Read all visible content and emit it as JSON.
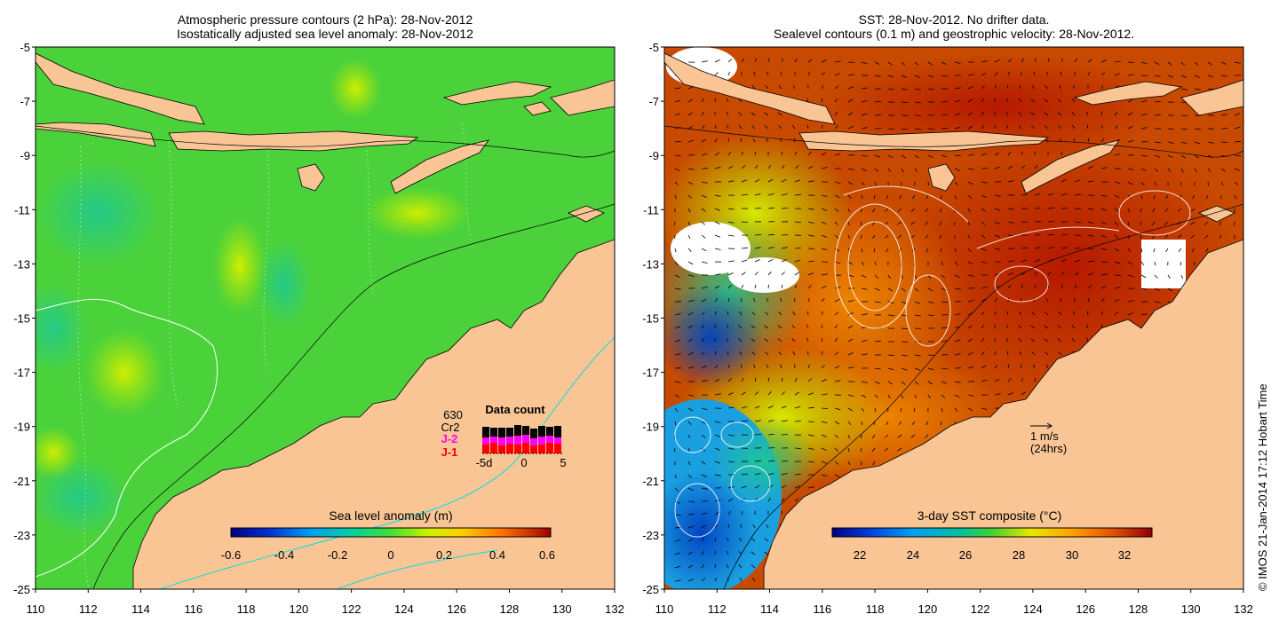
{
  "left_map": {
    "title_line1": "Atmospheric pressure contours (2 hPa): 28-Nov-2012",
    "title_line2": "Isostatically adjusted sea level anomaly: 28-Nov-2012",
    "colorbar_title": "Sea level anomaly (m)",
    "colorbar_ticks": [
      "-0.6",
      "-0.4",
      "-0.2",
      "0",
      "0.2",
      "0.4",
      "0.6"
    ],
    "y_ticks": [
      "-5",
      "-7",
      "-9",
      "-11",
      "-13",
      "-15",
      "-17",
      "-19",
      "-21",
      "-23",
      "-25"
    ],
    "x_ticks": [
      "110",
      "112",
      "114",
      "116",
      "118",
      "120",
      "122",
      "124",
      "126",
      "128",
      "130",
      "132"
    ],
    "data_count": {
      "title": "Data count",
      "total": "630",
      "sat1": "Cr2",
      "sat2": "J-2",
      "sat3": "J-1",
      "axis_left": "-5d",
      "axis_mid": "0",
      "axis_right": "5",
      "colors": {
        "cr2": "#000000",
        "j2": "#ff00ff",
        "j1": "#ff0000"
      }
    }
  },
  "right_map": {
    "title_line1": "SST: 28-Nov-2012. No drifter data.",
    "title_line2": "Sealevel contours (0.1 m) and geostrophic velocity: 28-Nov-2012.",
    "colorbar_title": "3-day SST composite (°C)",
    "colorbar_ticks": [
      "22",
      "24",
      "26",
      "28",
      "30",
      "32"
    ],
    "y_ticks": [
      "-5",
      "-7",
      "-9",
      "-11",
      "-13",
      "-15",
      "-17",
      "-19",
      "-21",
      "-23",
      "-25"
    ],
    "x_ticks": [
      "110",
      "112",
      "114",
      "116",
      "118",
      "120",
      "122",
      "124",
      "126",
      "128",
      "130",
      "132"
    ],
    "velocity_scale": "1 m/s",
    "velocity_scale_sub": "(24hrs)"
  },
  "credit": "© IMOS 21-Jan-2014 17:12 Hobart Time",
  "colors": {
    "land": "#f9c595",
    "coast_line": "#00e0e0",
    "sea_green": "#4bd23b",
    "sst_warm": "#c23a00",
    "sst_cool": "#1aa0e0"
  }
}
